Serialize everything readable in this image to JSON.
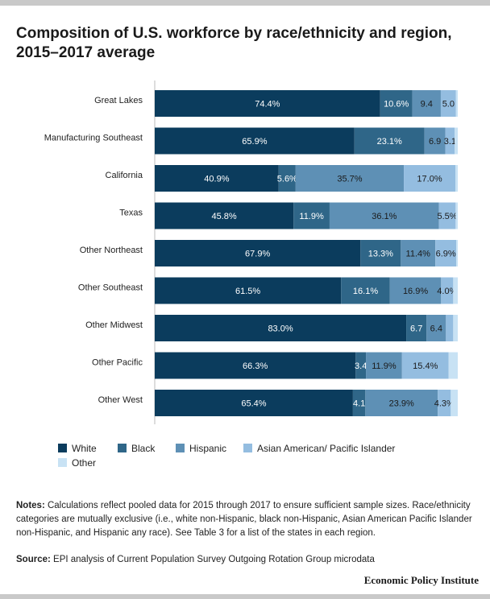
{
  "title": "Composition of U.S. workforce by race/ethnicity and region, 2015–2017 average",
  "chart_data": {
    "type": "bar",
    "orientation": "horizontal",
    "stacked": true,
    "xlim": [
      0,
      100
    ],
    "grid": false,
    "legend_position": "bottom",
    "categories": [
      "Great Lakes",
      "Manufacturing Southeast",
      "California",
      "Texas",
      "Other Northeast",
      "Other Southeast",
      "Other Midwest",
      "Other Pacific",
      "Other West"
    ],
    "series": [
      {
        "name": "White",
        "color": "#0b3c5d",
        "values": [
          74.4,
          65.9,
          40.9,
          45.8,
          67.9,
          61.5,
          83.0,
          66.3,
          65.4
        ],
        "labels": [
          "74.4%",
          "65.9%",
          "40.9%",
          "45.8%",
          "67.9%",
          "61.5%",
          "83.0%",
          "66.3%",
          "65.4%"
        ]
      },
      {
        "name": "Black",
        "color": "#2f6688",
        "values": [
          10.6,
          23.1,
          5.6,
          11.9,
          13.3,
          16.1,
          6.7,
          3.4,
          4.1
        ],
        "labels": [
          "10.6%",
          "23.1%",
          "5.6%",
          "11.9%",
          "13.3%",
          "16.1%",
          "6.7",
          "3.4",
          "4.1"
        ]
      },
      {
        "name": "Hispanic",
        "color": "#5e90b5",
        "values": [
          9.4,
          6.9,
          35.7,
          36.1,
          11.4,
          16.9,
          6.4,
          11.9,
          23.9
        ],
        "labels": [
          "9.4",
          "6.9",
          "35.7%",
          "36.1%",
          "11.4%",
          "16.9%",
          "6.4",
          "11.9%",
          "23.9%"
        ]
      },
      {
        "name": "Asian American/ Pacific Islander",
        "color": "#94bde0",
        "values": [
          5.0,
          3.1,
          17.0,
          5.5,
          6.9,
          4.0,
          2.4,
          15.4,
          4.3
        ],
        "labels": [
          "5.0",
          "3.1",
          "17.0%",
          "5.5%",
          "6.9%",
          "4.0%",
          "",
          "15.4%",
          "4.3%"
        ]
      },
      {
        "name": "Other",
        "color": "#c8e2f4",
        "values": [
          0.6,
          1.0,
          0.8,
          0.7,
          0.5,
          1.5,
          1.5,
          3.0,
          2.3
        ],
        "labels": [
          "",
          "",
          "",
          "",
          "",
          "",
          "",
          "",
          ""
        ]
      }
    ]
  },
  "notes": {
    "label": "Notes:",
    "text": " Calculations reflect pooled data for 2015 through 2017 to ensure sufficient sample sizes. Race/ethnicity categories are mutually exclusive (i.e., white non-Hispanic, black non-Hispanic, Asian American Pacific Islander non-Hispanic, and Hispanic any race). See Table 3 for a list of the states in each region."
  },
  "source": {
    "label": "Source:",
    "text": " EPI analysis of Current Population Survey Outgoing Rotation Group microdata"
  },
  "brand": "Economic Policy Institute"
}
